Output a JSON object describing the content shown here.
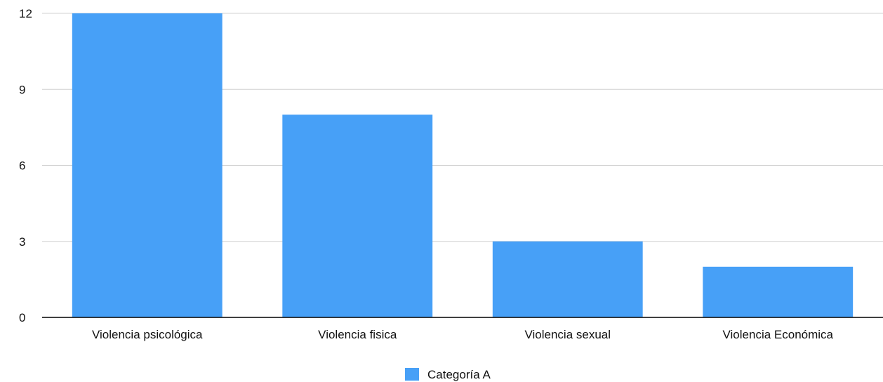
{
  "chart_data": {
    "type": "bar",
    "title": "",
    "xlabel": "",
    "ylabel": "",
    "categories": [
      "Violencia psicológica",
      "Violencia fisica",
      "Violencia sexual",
      "Violencia Económica"
    ],
    "series": [
      {
        "name": "Categoría A",
        "values": [
          12,
          8,
          3,
          2
        ],
        "color": "#47A0F7"
      }
    ],
    "ylim": [
      0,
      12
    ],
    "yticks": [
      "0",
      "3",
      "6",
      "9",
      "12"
    ],
    "grid": true,
    "legend_position": "bottom-center",
    "grid_color": "#D0D0D0",
    "axis_color": "#000000"
  }
}
